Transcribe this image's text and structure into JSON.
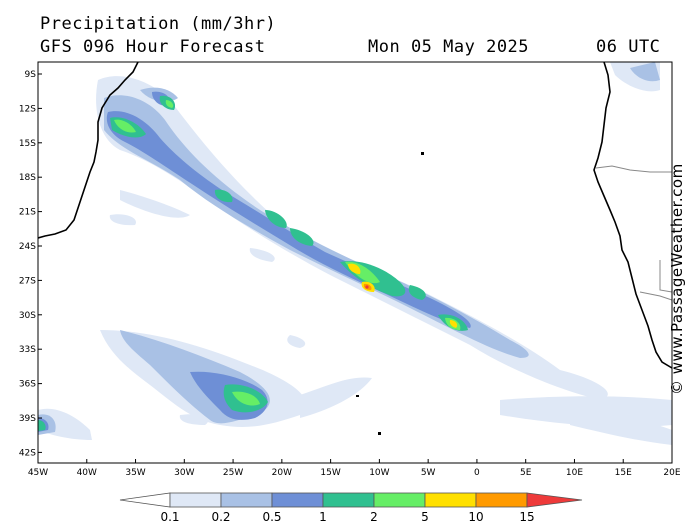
{
  "header": {
    "title": "Precipitation (mm/3hr)",
    "model": "GFS 096 Hour Forecast",
    "date": "Mon 05 May 2025",
    "time": "06 UTC"
  },
  "credit": "© www.PassageWeather.com",
  "axes": {
    "lat_labels": [
      "9S",
      "12S",
      "15S",
      "18S",
      "21S",
      "24S",
      "27S",
      "30S",
      "33S",
      "36S",
      "39S",
      "42S"
    ],
    "lon_labels": [
      "45W",
      "40W",
      "35W",
      "30W",
      "25W",
      "20W",
      "15W",
      "10W",
      "5W",
      "0",
      "5E",
      "10E",
      "15E",
      "20E"
    ]
  },
  "legend": {
    "labels": [
      "0.1",
      "0.2",
      "0.5",
      "1",
      "2",
      "5",
      "10",
      "15"
    ],
    "colors": [
      "#ffffff",
      "#dfe8f6",
      "#a9c1e5",
      "#6e8fd6",
      "#30c090",
      "#66ee66",
      "#ffe000",
      "#ff9a00",
      "#ee3a3a"
    ]
  },
  "colors": {
    "land_outline": "#000000",
    "background": "#ffffff"
  }
}
